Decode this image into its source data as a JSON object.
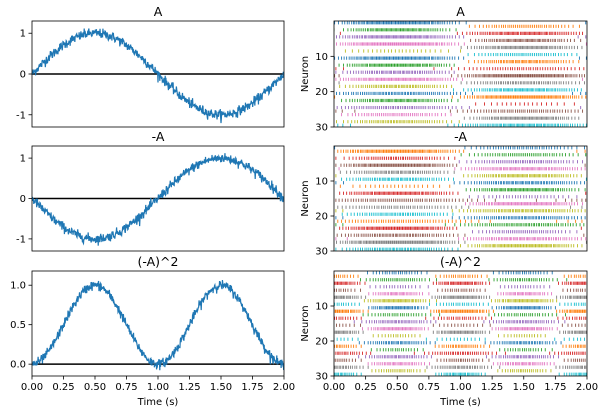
{
  "chart_data": [
    {
      "type": "line",
      "title": "A",
      "xlabel": "",
      "ylabel": "",
      "xlim": [
        0,
        2
      ],
      "ylim": [
        -1.3,
        1.3
      ],
      "yticks": [
        -1,
        0,
        1
      ],
      "xticks": [],
      "signal": "sin",
      "noise": 0.12,
      "baseline": 0,
      "color": "#1f77b4"
    },
    {
      "type": "scatter",
      "title": "A",
      "xlabel": "",
      "ylabel": "Neuron",
      "xlim": [
        0,
        2
      ],
      "ylim": [
        30,
        0
      ],
      "yticks": [
        10,
        20,
        30
      ],
      "xticks": [],
      "neurons": 30,
      "signal": "sin"
    },
    {
      "type": "line",
      "title": "-A",
      "xlabel": "",
      "ylabel": "",
      "xlim": [
        0,
        2
      ],
      "ylim": [
        -1.3,
        1.3
      ],
      "yticks": [
        -1,
        0,
        1
      ],
      "xticks": [],
      "signal": "negsin",
      "noise": 0.12,
      "baseline": 0,
      "color": "#1f77b4"
    },
    {
      "type": "scatter",
      "title": "-A",
      "xlabel": "",
      "ylabel": "Neuron",
      "xlim": [
        0,
        2
      ],
      "ylim": [
        30,
        0
      ],
      "yticks": [
        10,
        20,
        30
      ],
      "xticks": [],
      "neurons": 30,
      "signal": "negsin"
    },
    {
      "type": "line",
      "title": "(-A)^2",
      "xlabel": "Time (s)",
      "ylabel": "",
      "xlim": [
        0,
        2
      ],
      "ylim": [
        -0.15,
        1.18
      ],
      "yticks": [
        0.0,
        0.5,
        1.0
      ],
      "xticks": [
        0.0,
        0.25,
        0.5,
        0.75,
        1.0,
        1.25,
        1.5,
        1.75,
        2.0
      ],
      "signal": "sq",
      "noise": 0.06,
      "baseline": 0,
      "color": "#1f77b4"
    },
    {
      "type": "scatter",
      "title": "(-A)^2",
      "xlabel": "Time (s)",
      "ylabel": "Neuron",
      "xlim": [
        0,
        2
      ],
      "ylim": [
        30,
        0
      ],
      "yticks": [
        10,
        20,
        30
      ],
      "xticks": [
        0.0,
        0.25,
        0.5,
        0.75,
        1.0,
        1.25,
        1.5,
        1.75,
        2.0
      ],
      "neurons": 30,
      "signal": "sq"
    }
  ],
  "neuron_colors": [
    "#1f77b4",
    "#ff7f0e",
    "#2ca02c",
    "#d62728",
    "#9467bd",
    "#8c564b",
    "#e377c2",
    "#7f7f7f",
    "#bcbd22",
    "#17becf"
  ]
}
